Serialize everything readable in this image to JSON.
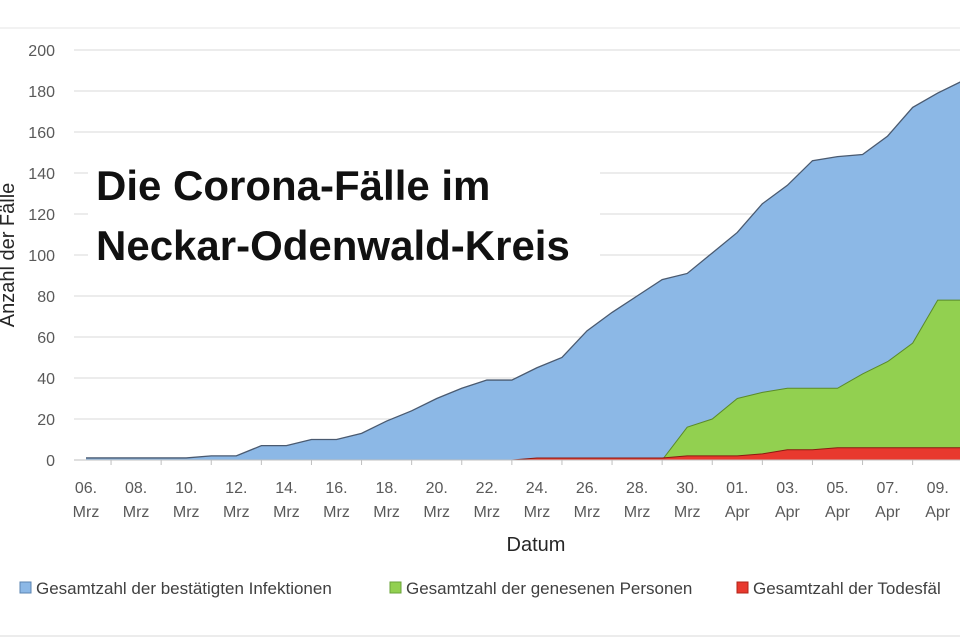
{
  "chart_data": {
    "type": "area",
    "title_line1": "Die Corona-Fälle im",
    "title_line2": "Neckar-Odenwald-Kreis",
    "xlabel": "Datum",
    "ylabel": "Anzahl der Fälle",
    "ylim": [
      0,
      200
    ],
    "yticks": [
      "0",
      "20",
      "40",
      "60",
      "80",
      "100",
      "120",
      "140",
      "160",
      "180",
      "200"
    ],
    "grid": true,
    "legend_position": "bottom",
    "x": [
      "06.03",
      "07.03",
      "08.03",
      "09.03",
      "10.03",
      "11.03",
      "12.03",
      "13.03",
      "14.03",
      "15.03",
      "16.03",
      "17.03",
      "18.03",
      "19.03",
      "20.03",
      "21.03",
      "22.03",
      "23.03",
      "24.03",
      "25.03",
      "26.03",
      "27.03",
      "28.03",
      "29.03",
      "30.03",
      "31.03",
      "01.04",
      "02.04",
      "03.04",
      "04.04",
      "05.04",
      "06.04",
      "07.04",
      "08.04",
      "09.04",
      "10.04"
    ],
    "xtick_labels": [
      {
        "day": "06.",
        "month": "Mrz"
      },
      {
        "day": "08.",
        "month": "Mrz"
      },
      {
        "day": "10.",
        "month": "Mrz"
      },
      {
        "day": "12.",
        "month": "Mrz"
      },
      {
        "day": "14.",
        "month": "Mrz"
      },
      {
        "day": "16.",
        "month": "Mrz"
      },
      {
        "day": "18.",
        "month": "Mrz"
      },
      {
        "day": "20.",
        "month": "Mrz"
      },
      {
        "day": "22.",
        "month": "Mrz"
      },
      {
        "day": "24.",
        "month": "Mrz"
      },
      {
        "day": "26.",
        "month": "Mrz"
      },
      {
        "day": "28.",
        "month": "Mrz"
      },
      {
        "day": "30.",
        "month": "Mrz"
      },
      {
        "day": "01.",
        "month": "Apr"
      },
      {
        "day": "03.",
        "month": "Apr"
      },
      {
        "day": "05.",
        "month": "Apr"
      },
      {
        "day": "07.",
        "month": "Apr"
      },
      {
        "day": "09.",
        "month": "Apr"
      }
    ],
    "series": [
      {
        "name": "Gesamtzahl der bestätigten Infektionen",
        "color": "#8cb8e6",
        "values": [
          1,
          1,
          1,
          1,
          1,
          2,
          2,
          7,
          7,
          10,
          10,
          13,
          19,
          24,
          30,
          35,
          39,
          39,
          45,
          50,
          63,
          72,
          80,
          88,
          91,
          101,
          111,
          125,
          134,
          146,
          148,
          149,
          158,
          172,
          179,
          185
        ]
      },
      {
        "name": "Gesamtzahl der genesenen Personen",
        "color": "#92d050",
        "values": [
          0,
          0,
          0,
          0,
          0,
          0,
          0,
          0,
          0,
          0,
          0,
          0,
          0,
          0,
          0,
          0,
          0,
          0,
          0,
          0,
          0,
          0,
          0,
          0,
          16,
          20,
          30,
          33,
          35,
          35,
          35,
          42,
          48,
          57,
          78,
          78
        ]
      },
      {
        "name": "Gesamtzahl der Todesfäl",
        "color": "#e8392e",
        "values": [
          0,
          0,
          0,
          0,
          0,
          0,
          0,
          0,
          0,
          0,
          0,
          0,
          0,
          0,
          0,
          0,
          0,
          0,
          1,
          1,
          1,
          1,
          1,
          1,
          2,
          2,
          2,
          3,
          5,
          5,
          6,
          6,
          6,
          6,
          6,
          6
        ]
      }
    ]
  }
}
